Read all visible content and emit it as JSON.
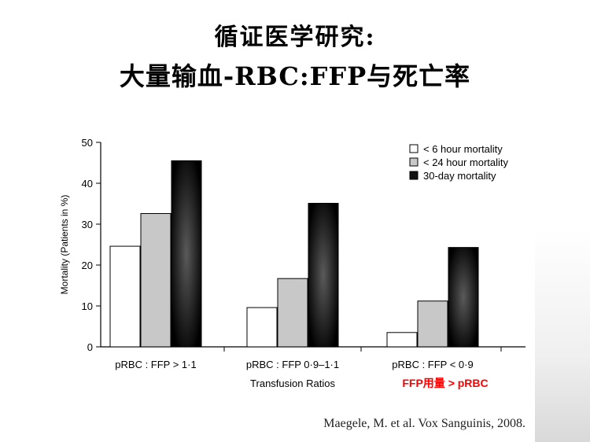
{
  "title": {
    "line1": "循证医学研究:",
    "line2": "大量输血-RBC:FFP与死亡率"
  },
  "citation": "Maegele, M. et al. Vox Sanguinis, 2008.",
  "annotation": {
    "text": "FFP用量 > pRBC",
    "color": "#ff0000"
  },
  "chart_data": {
    "type": "bar",
    "categories": [
      "pRBC : FFP > 1·1",
      "pRBC : FFP 0·9–1·1",
      "pRBC : FFP < 0·9"
    ],
    "series": [
      {
        "name": "< 6 hour mortality",
        "values": [
          24.6,
          9.6,
          3.5
        ],
        "fill": "#ffffff"
      },
      {
        "name": "< 24 hour mortality",
        "values": [
          32.6,
          16.7,
          11.2
        ],
        "fill": "#c8c8c8"
      },
      {
        "name": "30-day mortality",
        "values": [
          45.5,
          35.1,
          24.3
        ],
        "fill": "#111111"
      }
    ],
    "xlabel": "Transfusion Ratios",
    "ylabel": "Mortality (Patients in %)",
    "ylim": [
      0,
      50
    ],
    "yticks": [
      "0",
      "10",
      "20",
      "30",
      "40",
      "50"
    ],
    "legend_position": "top-right",
    "grid": false
  }
}
